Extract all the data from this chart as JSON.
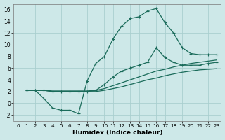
{
  "xlabel": "Humidex (Indice chaleur)",
  "bg_color": "#cde8e8",
  "grid_color": "#aacfcf",
  "line_color": "#1a6b5a",
  "xlim": [
    -0.5,
    23.5
  ],
  "ylim": [
    -3,
    17
  ],
  "xticks": [
    0,
    1,
    2,
    3,
    4,
    5,
    6,
    7,
    8,
    9,
    10,
    11,
    12,
    13,
    14,
    15,
    16,
    17,
    18,
    19,
    20,
    21,
    22,
    23
  ],
  "yticks": [
    -2,
    0,
    2,
    4,
    6,
    8,
    10,
    12,
    14,
    16
  ],
  "curve_main_x": [
    1,
    2,
    3,
    4,
    5,
    6,
    7,
    8,
    9,
    10,
    11,
    12,
    13,
    14,
    15,
    16,
    17,
    18,
    19,
    20,
    21,
    22,
    23
  ],
  "curve_main_y": [
    2.2,
    2.2,
    0.8,
    -0.8,
    -1.2,
    -1.2,
    -1.8,
    3.8,
    6.8,
    8.0,
    11.0,
    13.2,
    14.5,
    14.8,
    15.8,
    16.2,
    13.8,
    12.0,
    9.5,
    8.5,
    8.3,
    8.3,
    8.3
  ],
  "curve_mid_x": [
    1,
    2,
    3,
    4,
    5,
    6,
    7,
    8,
    9,
    10,
    11,
    12,
    13,
    14,
    15,
    16,
    17,
    18,
    19,
    20,
    21,
    22,
    23
  ],
  "curve_mid_y": [
    2.2,
    2.2,
    2.2,
    2.0,
    2.0,
    2.0,
    2.0,
    2.0,
    2.2,
    3.2,
    4.5,
    5.5,
    6.0,
    6.5,
    7.0,
    9.5,
    7.8,
    7.0,
    6.5,
    6.5,
    6.5,
    6.8,
    7.0
  ],
  "curve_low1_x": [
    1,
    2,
    3,
    4,
    5,
    6,
    7,
    8,
    9,
    10,
    11,
    12,
    13,
    14,
    15,
    16,
    17,
    18,
    19,
    20,
    21,
    22,
    23
  ],
  "curve_low1_y": [
    2.2,
    2.2,
    2.2,
    2.1,
    2.1,
    2.1,
    2.1,
    2.1,
    2.2,
    2.5,
    3.0,
    3.5,
    4.0,
    4.5,
    5.0,
    5.5,
    5.8,
    6.2,
    6.5,
    6.8,
    7.0,
    7.2,
    7.4
  ],
  "curve_low2_x": [
    1,
    2,
    3,
    4,
    5,
    6,
    7,
    8,
    9,
    10,
    11,
    12,
    13,
    14,
    15,
    16,
    17,
    18,
    19,
    20,
    21,
    22,
    23
  ],
  "curve_low2_y": [
    2.2,
    2.2,
    2.2,
    2.0,
    2.0,
    2.0,
    2.0,
    2.0,
    2.0,
    2.2,
    2.5,
    2.8,
    3.2,
    3.6,
    4.0,
    4.3,
    4.7,
    5.0,
    5.3,
    5.5,
    5.7,
    5.8,
    5.9
  ]
}
